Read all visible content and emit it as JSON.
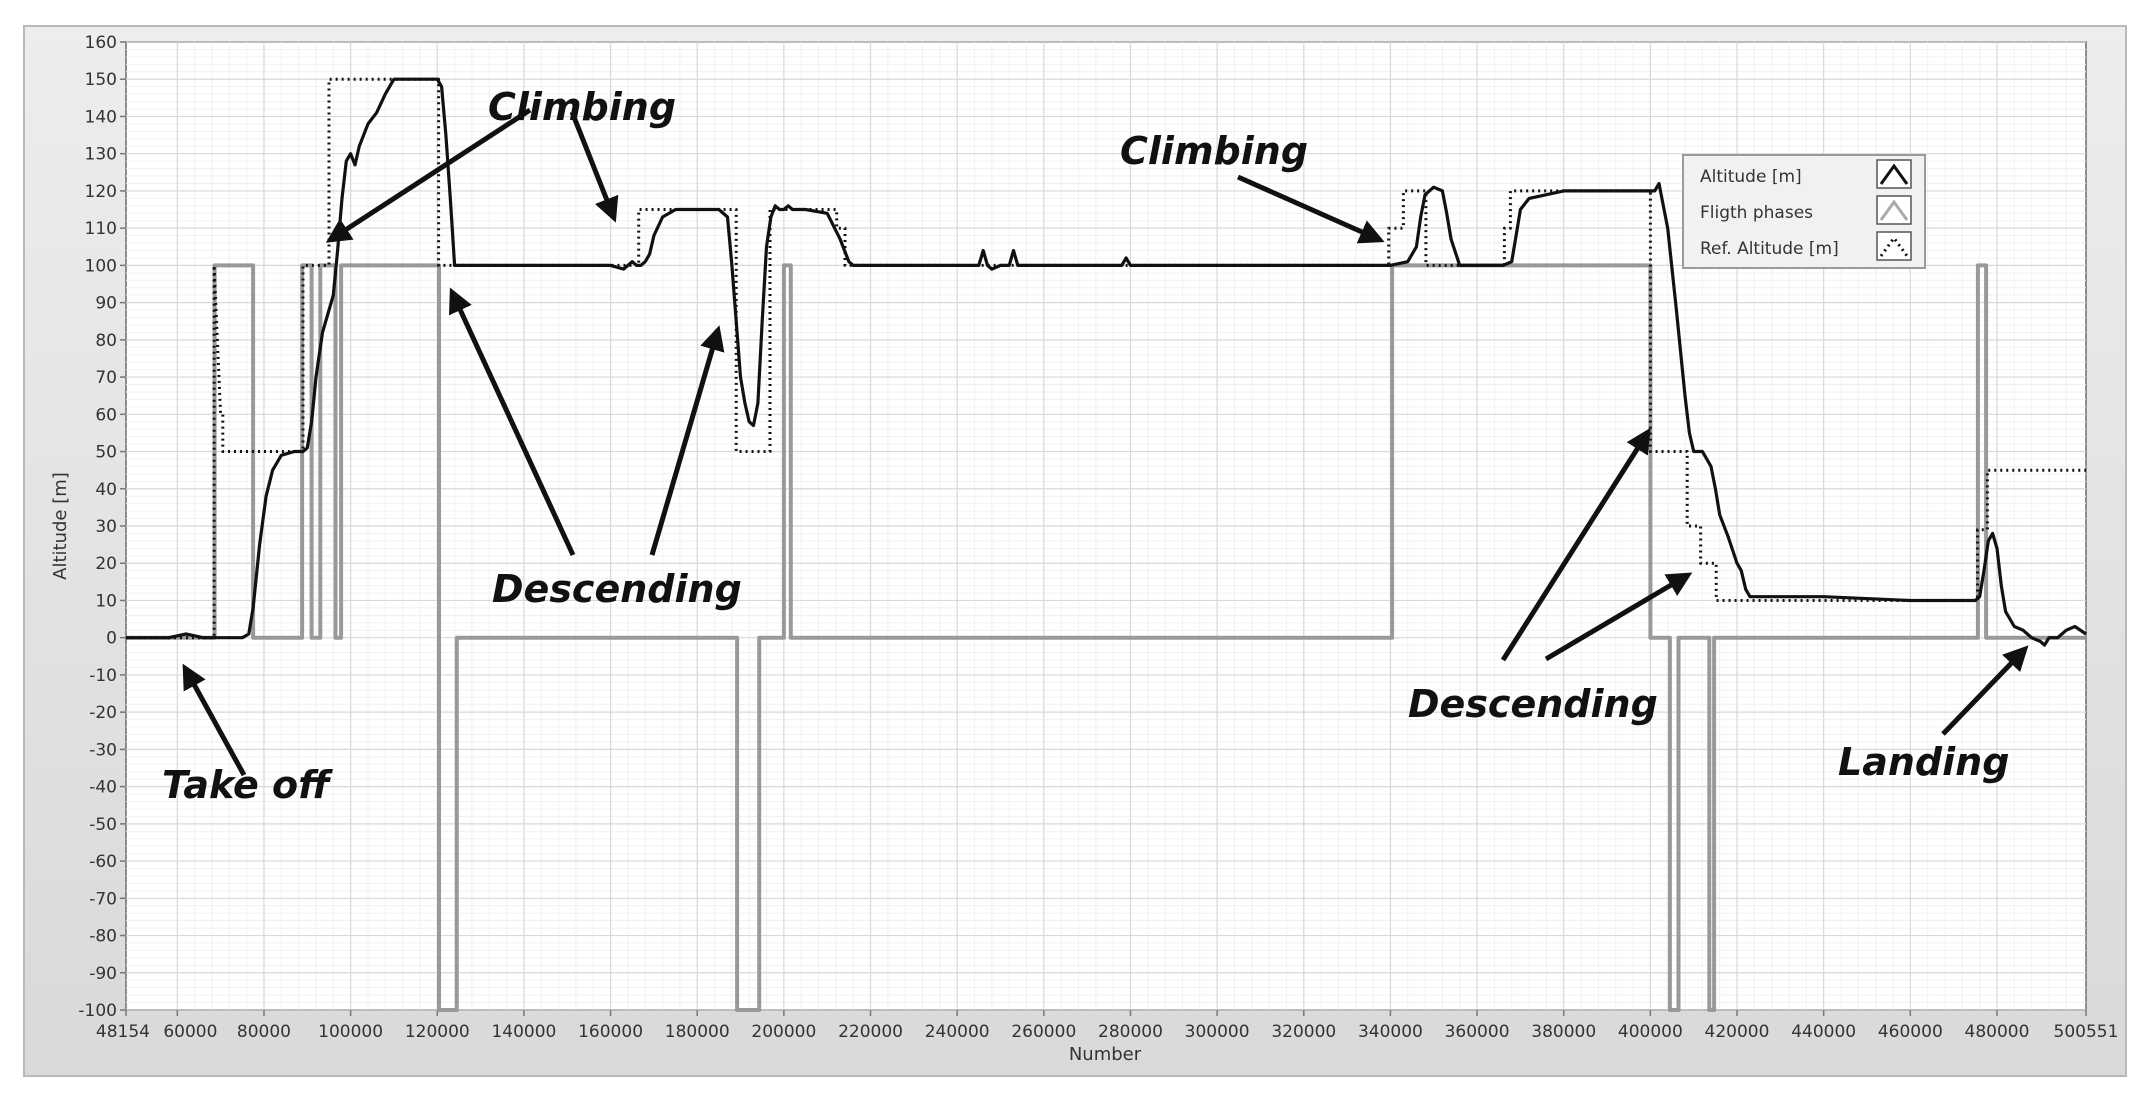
{
  "chart_data": {
    "type": "line",
    "xlabel": "Number",
    "ylabel": "Altitude [m]",
    "xlim": [
      48154,
      500551
    ],
    "ylim": [
      -100,
      160
    ],
    "grid": true,
    "x_tick_labels": [
      "48154",
      "60000",
      "80000",
      "100000",
      "120000",
      "140000",
      "160000",
      "180000",
      "200000",
      "220000",
      "240000",
      "260000",
      "280000",
      "300000",
      "320000",
      "340000",
      "360000",
      "380000",
      "400000",
      "420000",
      "440000",
      "460000",
      "480000",
      "500551"
    ],
    "y_ticks": [
      -100,
      -90,
      -80,
      -70,
      -60,
      -50,
      -40,
      -30,
      -20,
      -10,
      0,
      10,
      20,
      30,
      40,
      50,
      60,
      70,
      80,
      90,
      100,
      110,
      120,
      130,
      140,
      150,
      160
    ],
    "legend_position": "top-right",
    "series": [
      {
        "name": "Altitude [m]",
        "style": "solid",
        "color": "#111111",
        "x": [
          48154,
          58000,
          62000,
          66000,
          70000,
          75000,
          76500,
          77500,
          79000,
          80500,
          82000,
          84000,
          87000,
          89000,
          90000,
          91000,
          92000,
          93500,
          95000,
          96000,
          97000,
          98000,
          99000,
          100000,
          101000,
          102000,
          104000,
          106000,
          108000,
          110000,
          112000,
          116000,
          120000,
          121000,
          122000,
          123000,
          124000,
          125000,
          126000,
          128000,
          130000,
          140000,
          150000,
          160000,
          163000,
          165000,
          166000,
          167000,
          168000,
          169000,
          170000,
          172000,
          175000,
          180000,
          185000,
          187000,
          188000,
          189000,
          190000,
          191000,
          192000,
          193000,
          194000,
          195000,
          196000,
          197000,
          198000,
          199000,
          200000,
          201000,
          202000,
          205000,
          210000,
          213000,
          214000,
          215000,
          216000,
          218000,
          220000,
          230000,
          245000,
          246000,
          247000,
          248000,
          250000,
          252000,
          253000,
          254000,
          255000,
          260000,
          278000,
          279000,
          280000,
          300000,
          320000,
          335000,
          340000,
          344000,
          346000,
          347000,
          348000,
          350000,
          352000,
          353000,
          354000,
          356000,
          360000,
          366000,
          368000,
          369000,
          370000,
          372000,
          380000,
          390000,
          398000,
          400000,
          401000,
          402000,
          404000,
          406000,
          408000,
          409000,
          410000,
          411000,
          412000,
          413000,
          414000,
          415000,
          416000,
          418000,
          420000,
          421000,
          422000,
          423000,
          430000,
          440000,
          460000,
          474000,
          475000,
          476000,
          477000,
          478000,
          479000,
          480000,
          481000,
          482000,
          484000,
          486000,
          488000,
          490000,
          491000,
          492000,
          494000,
          496000,
          498000,
          500551
        ],
        "y": [
          0,
          0,
          1,
          0,
          0,
          0,
          1,
          8,
          25,
          38,
          45,
          49,
          50,
          50,
          51,
          58,
          70,
          82,
          88,
          92,
          104,
          118,
          128,
          130,
          127,
          132,
          138,
          141,
          146,
          150,
          150,
          150,
          150,
          148,
          135,
          118,
          100,
          100,
          100,
          100,
          100,
          100,
          100,
          100,
          99,
          101,
          100,
          100,
          101,
          103,
          108,
          113,
          115,
          115,
          115,
          113,
          100,
          85,
          70,
          63,
          58,
          57,
          63,
          85,
          105,
          113,
          116,
          115,
          115,
          116,
          115,
          115,
          114,
          107,
          104,
          101,
          100,
          100,
          100,
          100,
          100,
          104,
          100,
          99,
          100,
          100,
          104,
          100,
          100,
          100,
          100,
          102,
          100,
          100,
          100,
          100,
          100,
          101,
          105,
          113,
          119,
          121,
          120,
          114,
          107,
          100,
          100,
          100,
          101,
          108,
          115,
          118,
          120,
          120,
          120,
          120,
          120,
          122,
          110,
          88,
          65,
          55,
          50,
          50,
          50,
          48,
          46,
          40,
          33,
          27,
          20,
          18,
          13,
          11,
          11,
          11,
          10,
          10,
          10,
          11,
          18,
          26,
          28,
          24,
          14,
          7,
          3,
          2,
          0,
          -1,
          -2,
          0,
          0,
          2,
          3,
          1
        ]
      },
      {
        "name": "Fligth phases",
        "style": "solid",
        "color": "#999999",
        "x": [
          48154,
          68600,
          68600,
          77500,
          77500,
          88800,
          88800,
          91000,
          91000,
          93000,
          93000,
          96500,
          96500,
          97800,
          97800,
          120400,
          120400,
          124500,
          124500,
          189200,
          189200,
          194300,
          194300,
          200000,
          200000,
          201600,
          201600,
          340400,
          340400,
          400000,
          400000,
          404500,
          404500,
          406500,
          406500,
          413600,
          413600,
          414700,
          414700,
          475600,
          475600,
          477500,
          477500,
          500551
        ],
        "y": [
          0,
          0,
          100,
          100,
          0,
          0,
          100,
          100,
          0,
          0,
          100,
          100,
          0,
          0,
          100,
          100,
          -100,
          -100,
          0,
          0,
          -100,
          -100,
          0,
          0,
          100,
          100,
          0,
          0,
          100,
          100,
          0,
          0,
          -100,
          -100,
          0,
          0,
          -100,
          -100,
          0,
          0,
          100,
          100,
          0,
          0
        ]
      },
      {
        "name": "Ref. Altitude [m]",
        "style": "dotted",
        "color": "#111111",
        "x": [
          48154,
          68500,
          68500,
          70000,
          70500,
          70500,
          89000,
          89000,
          93000,
          95000,
          95000,
          120300,
          120300,
          166500,
          166500,
          189000,
          189000,
          196800,
          196800,
          200800,
          200800,
          212200,
          212200,
          214100,
          214100,
          339600,
          339600,
          343000,
          343000,
          348200,
          348200,
          366300,
          366300,
          367700,
          367700,
          400000,
          400000,
          401800,
          401800,
          408500,
          408500,
          411600,
          411600,
          415200,
          415200,
          475500,
          475500,
          477800,
          477800,
          500551
        ],
        "y": [
          0,
          0,
          100,
          60,
          60,
          50,
          50,
          100,
          100,
          100,
          150,
          150,
          100,
          100,
          115,
          115,
          50,
          50,
          115,
          115,
          115,
          115,
          110,
          110,
          100,
          100,
          110,
          110,
          120,
          120,
          100,
          100,
          110,
          110,
          120,
          120,
          50,
          50,
          50,
          50,
          30,
          30,
          20,
          20,
          10,
          10,
          29,
          29,
          45,
          45
        ]
      }
    ],
    "annotations": [
      "Climbing",
      "Climbing",
      "Descending",
      "Descending",
      "Take off",
      "Landing"
    ]
  }
}
